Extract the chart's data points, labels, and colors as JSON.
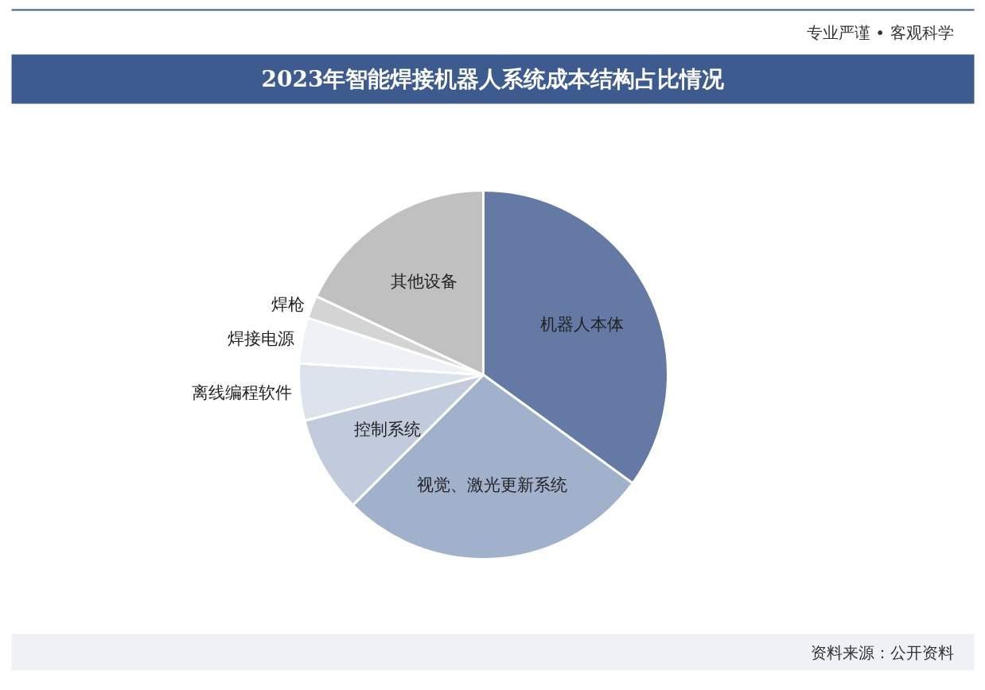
{
  "chart_data": {
    "type": "pie",
    "title": "2023年智能焊接机器人系统成本结构占比情况",
    "subtitle": "专业严谨 • 客观科学",
    "categories": [
      "机器人本体",
      "视觉、激光更新系统",
      "控制系统",
      "离线编程软件",
      "焊接电源",
      "焊枪",
      "其他设备"
    ],
    "values": [
      35,
      27.5,
      8.5,
      5,
      4,
      2,
      18
    ],
    "colors": [
      "#6479a3",
      "#a1b0cb",
      "#c2cbdc",
      "#dde3ec",
      "#eef1f5",
      "#d4d4d4",
      "#c0c0c0"
    ],
    "annotations": [
      "资料来源：公开资料"
    ]
  }
}
